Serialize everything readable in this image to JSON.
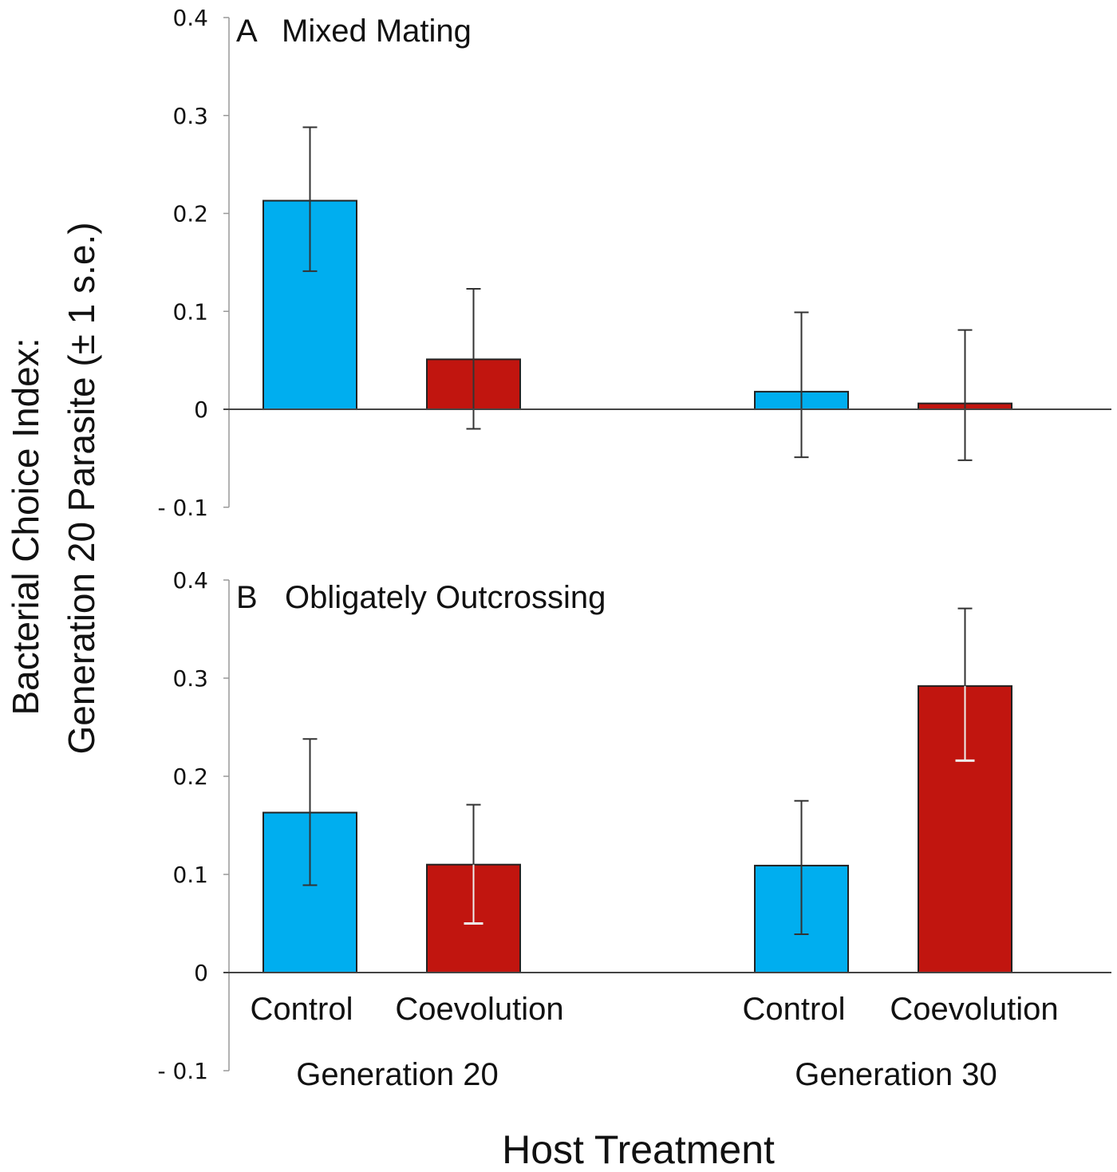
{
  "chart_data": {
    "type": "bar",
    "ylabel_line1": "Bacterial Choice Index:",
    "ylabel_line2": "Generation 20 Parasite (± 1 s.e.)",
    "xlabel": "Host Treatment",
    "ylim": [
      -0.1,
      0.4
    ],
    "yticks": [
      0.4,
      0.3,
      0.2,
      0.1,
      0,
      -0.1
    ],
    "ytick_labels": [
      "0.4",
      "0.3",
      "0.2",
      "0.1",
      "0",
      "- 0.1"
    ],
    "groups": [
      "Generation 20",
      "Generation 30"
    ],
    "categories": [
      "Control",
      "Coevolution",
      "Control",
      "Coevolution"
    ],
    "colors": {
      "Control": "#00AEEF",
      "Coevolution": "#C1150F"
    },
    "grid": false,
    "panels": [
      {
        "letter": "A",
        "title": "Mixed Mating",
        "values": [
          0.213,
          0.051,
          0.018,
          0.006
        ],
        "err_upper": [
          0.288,
          0.123,
          0.099,
          0.081
        ],
        "err_lower": [
          0.141,
          -0.02,
          -0.049,
          -0.052
        ]
      },
      {
        "letter": "B",
        "title": "Obligately Outcrossing",
        "values": [
          0.163,
          0.11,
          0.109,
          0.292
        ],
        "err_upper": [
          0.238,
          0.171,
          0.175,
          0.371
        ],
        "err_lower": [
          0.089,
          0.05,
          0.039,
          0.216
        ]
      }
    ]
  }
}
